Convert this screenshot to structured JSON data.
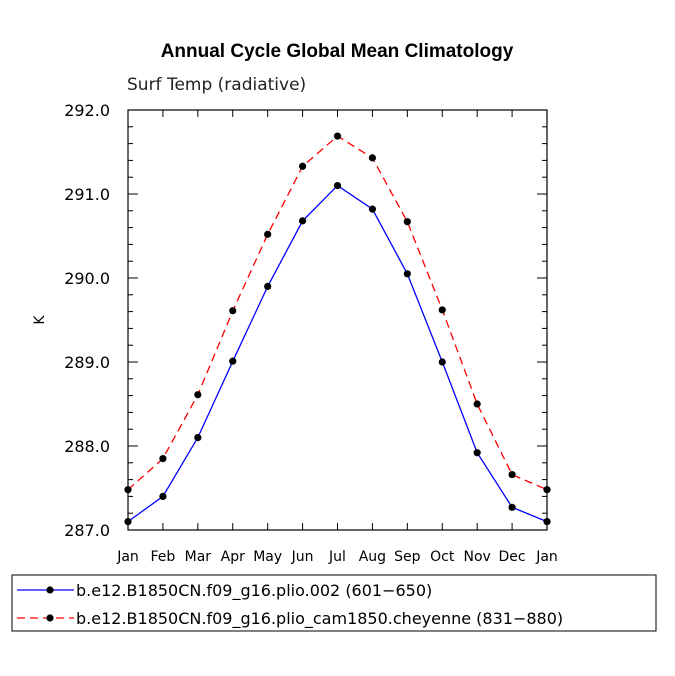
{
  "chart_data": {
    "type": "line",
    "title": "Annual Cycle Global Mean Climatology",
    "subtitle": "Surf Temp (radiative)",
    "ylabel": "K",
    "xlabel": "",
    "categories": [
      "Jan",
      "Feb",
      "Mar",
      "Apr",
      "May",
      "Jun",
      "Jul",
      "Aug",
      "Sep",
      "Oct",
      "Nov",
      "Dec",
      "Jan"
    ],
    "ylim": [
      287.0,
      292.0
    ],
    "yticks": [
      "287.0",
      "288.0",
      "289.0",
      "290.0",
      "291.0",
      "292.0"
    ],
    "series": [
      {
        "name": "b.e12.B1850CN.f09_g16.plio.002 (601-650)",
        "color": "#0000ff",
        "dash": "solid",
        "values": [
          287.1,
          287.4,
          288.1,
          289.01,
          289.9,
          290.68,
          291.1,
          290.82,
          290.05,
          289.0,
          287.92,
          287.27,
          287.1
        ]
      },
      {
        "name": "b.e12.B1850CN.f09_g16.plio_cam1850.cheyenne (831-880)",
        "color": "#ff0000",
        "dash": "dashed",
        "values": [
          287.48,
          287.85,
          288.61,
          289.61,
          290.52,
          291.33,
          291.69,
          291.43,
          290.67,
          289.62,
          288.5,
          287.66,
          287.48
        ]
      }
    ],
    "legend": {
      "position": "bottom",
      "labels": [
        "b.e12.B1850CN.f09_g16.plio.002 (601−650)",
        "b.e12.B1850CN.f09_g16.plio_cam1850.cheyenne (831−880)"
      ]
    }
  }
}
